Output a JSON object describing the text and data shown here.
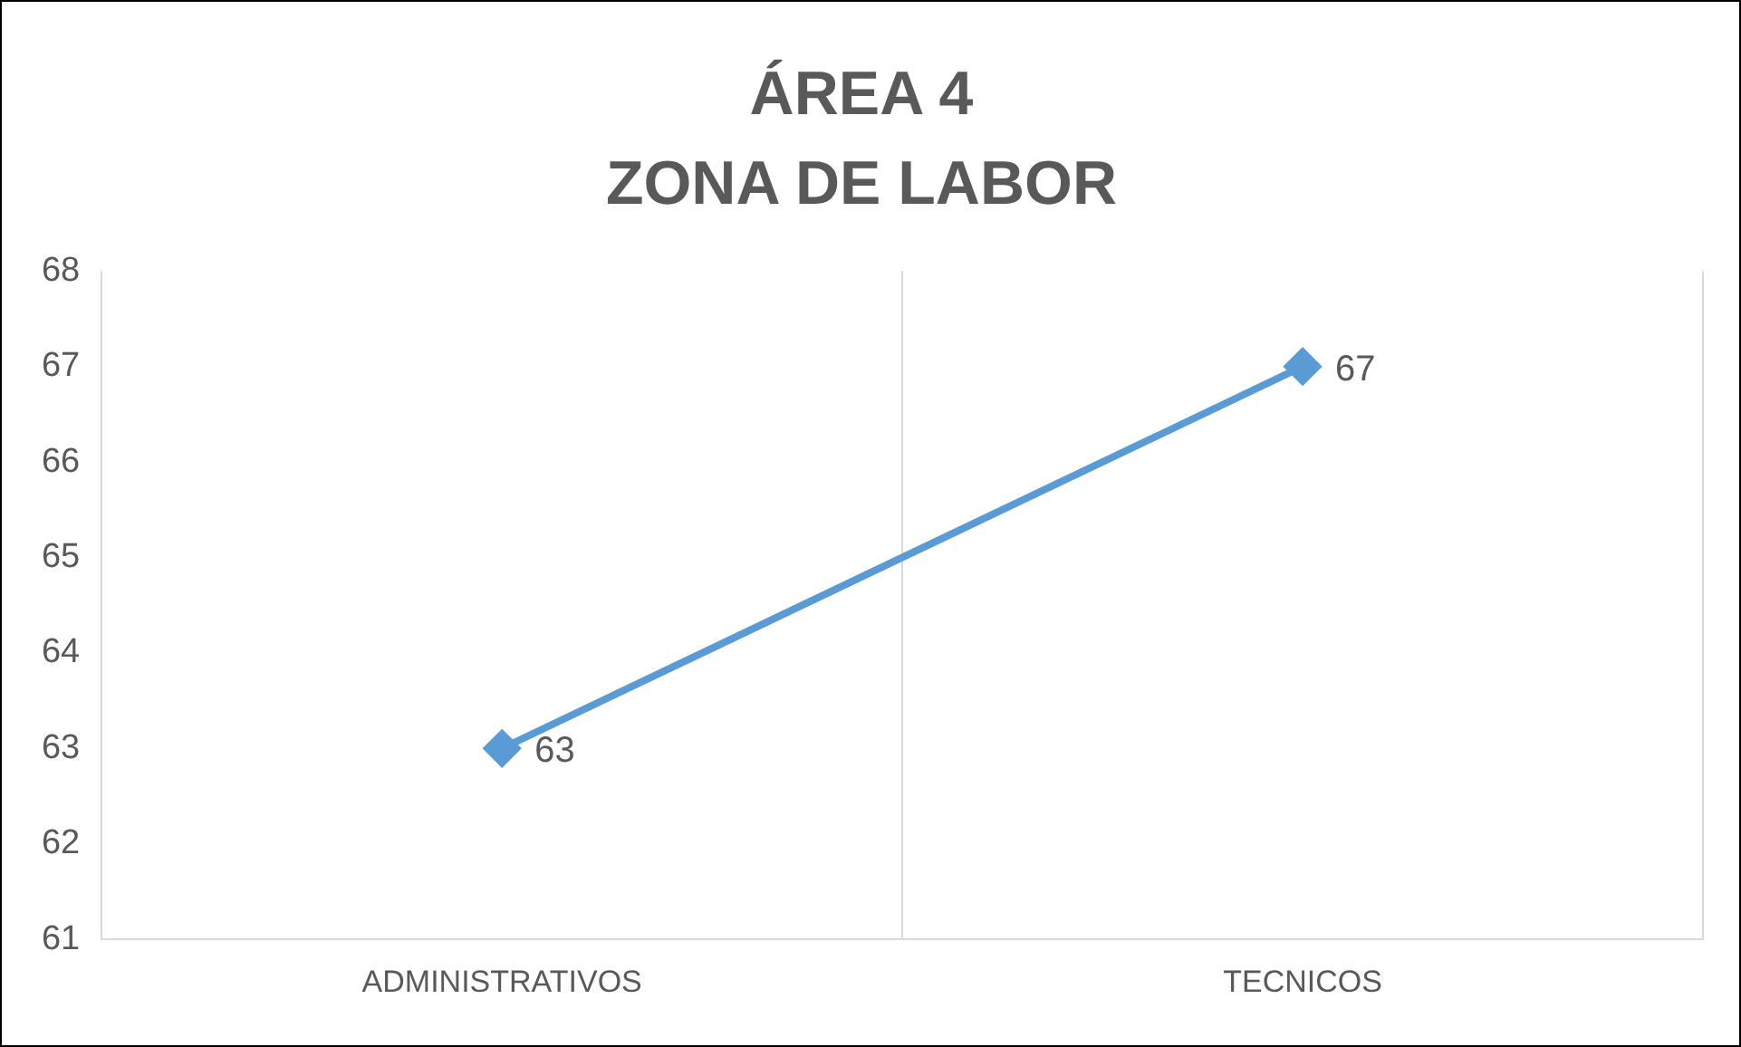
{
  "chart_data": {
    "type": "line",
    "title": "ÁREA 4\nZONA DE LABOR",
    "categories": [
      "ADMINISTRATIVOS",
      "TECNICOS"
    ],
    "series": [
      {
        "color": "#5b9bd5",
        "values": [
          63,
          67
        ]
      }
    ],
    "ylim": [
      61,
      68
    ],
    "yticks": [
      61,
      62,
      63,
      64,
      65,
      66,
      67,
      68
    ],
    "grid": "x",
    "legend": false,
    "marker": "diamond",
    "line_style": "solid",
    "data_labels": true
  }
}
